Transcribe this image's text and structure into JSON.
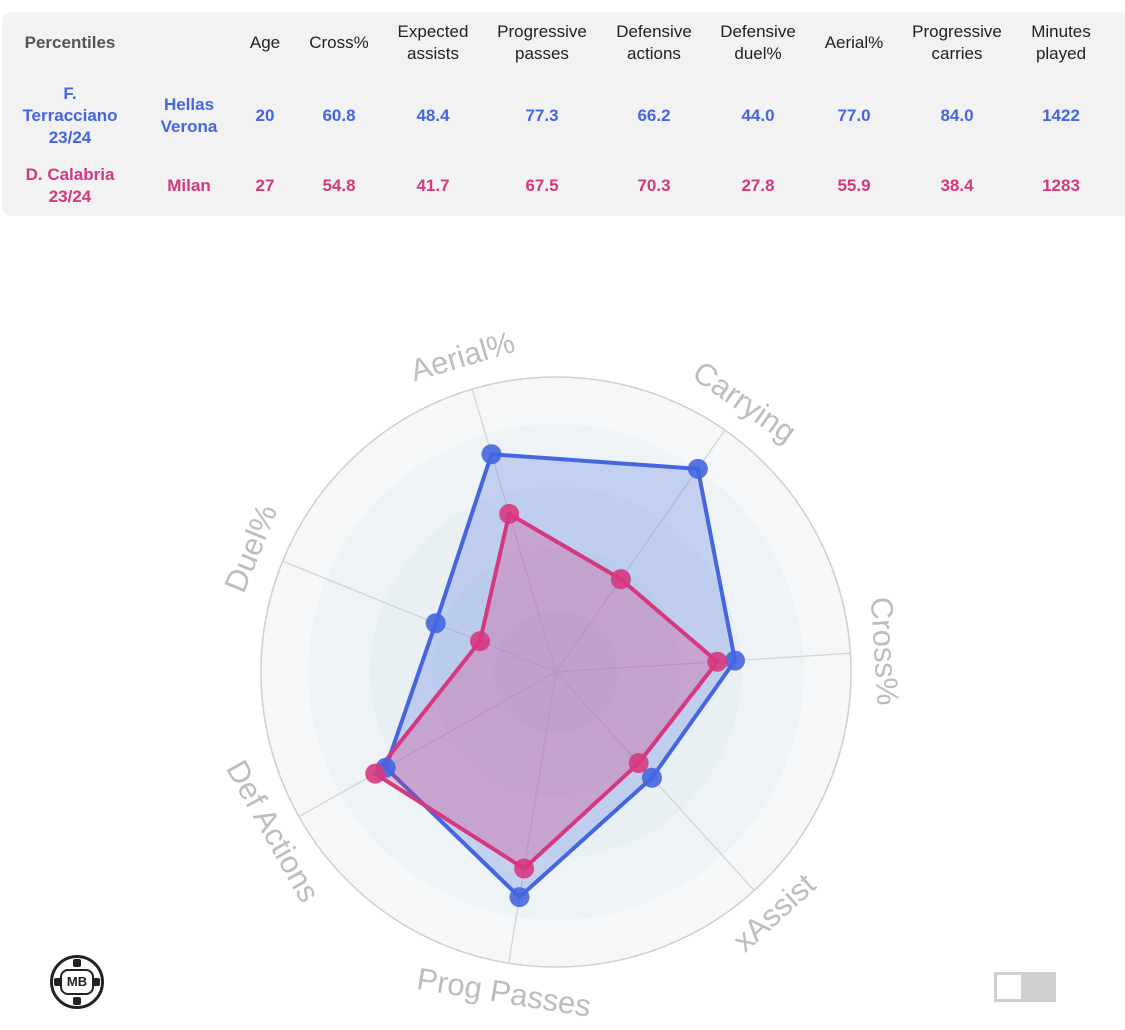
{
  "table": {
    "headers": [
      "Percentiles",
      "Age",
      "Cross%",
      "Expected\nassists",
      "Progressive\npasses",
      "Defensive\nactions",
      "Defensive\nduel%",
      "Aerial%",
      "Progressive\ncarries",
      "Minutes\nplayed"
    ],
    "rows": [
      {
        "name": "F.\nTerracciano\n23/24",
        "team": "Hellas\nVerona",
        "values": [
          "20",
          "60.8",
          "48.4",
          "77.3",
          "66.2",
          "44.0",
          "77.0",
          "84.0",
          "1422"
        ]
      },
      {
        "name": "D. Calabria\n23/24",
        "team": "Milan",
        "values": [
          "27",
          "54.8",
          "41.7",
          "67.5",
          "70.3",
          "27.8",
          "55.9",
          "38.4",
          "1283"
        ]
      }
    ]
  },
  "chart_data": {
    "type": "radar",
    "axes": [
      "Aerial%",
      "Carrying",
      "Cross%",
      "xAssist",
      "Prog Passes",
      "Def Actions",
      "Duel%"
    ],
    "range": [
      0,
      100
    ],
    "series": [
      {
        "name": "F. Terracciano 23/24",
        "color": "#4566e0",
        "values": [
          77.0,
          84.0,
          60.8,
          48.4,
          77.3,
          66.2,
          44.0
        ]
      },
      {
        "name": "D. Calabria 23/24",
        "color": "#d6387e",
        "values": [
          55.9,
          38.4,
          54.8,
          41.7,
          67.5,
          70.3,
          27.8
        ]
      }
    ]
  },
  "logo": {
    "text": "MB"
  }
}
